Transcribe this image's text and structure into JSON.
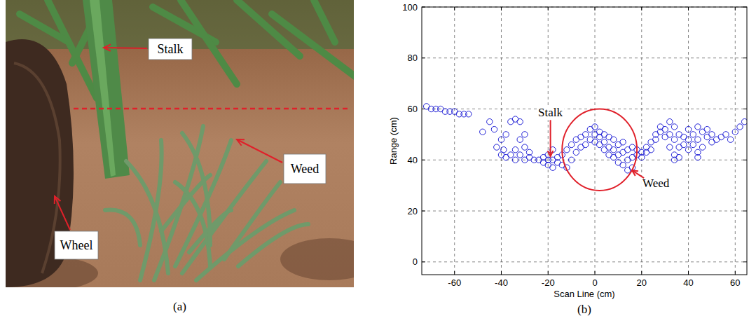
{
  "chart_data": {
    "type": "scatter",
    "x_label": "Scan Line (cm)",
    "y_label": "Range (cm)",
    "caption": "(b)",
    "marker": "circle",
    "color": "#1f1fd6",
    "grid": true,
    "xlim": [
      -74,
      65
    ],
    "xticks": [
      -60,
      -40,
      -20,
      0,
      20,
      40,
      60
    ],
    "ylim": [
      -5,
      100
    ],
    "yticks": [
      0,
      20,
      40,
      60,
      80,
      100
    ],
    "x": [
      -72,
      -70,
      -68,
      -66,
      -64,
      -62,
      -60,
      -58,
      -56,
      -54,
      -48,
      -45,
      -43,
      -42,
      -40,
      -40,
      -39,
      -38,
      -38,
      -36,
      -36,
      -34,
      -34,
      -34,
      -32,
      -32,
      -32,
      -30,
      -30,
      -30,
      -28,
      -28,
      -26,
      -24,
      -22,
      -22,
      -20,
      -20,
      -20,
      -18,
      -18,
      -18,
      -16,
      -16,
      -14,
      -14,
      -12,
      -12,
      -10,
      -10,
      -8,
      -8,
      -6,
      -6,
      -4,
      -4,
      -2,
      -2,
      0,
      0,
      0,
      2,
      2,
      2,
      4,
      4,
      4,
      6,
      6,
      6,
      8,
      8,
      8,
      10,
      10,
      10,
      12,
      12,
      12,
      14,
      14,
      14,
      16,
      16,
      16,
      18,
      18,
      20,
      20,
      22,
      22,
      24,
      24,
      26,
      26,
      28,
      28,
      30,
      30,
      32,
      32,
      32,
      34,
      34,
      34,
      34,
      36,
      36,
      36,
      38,
      38,
      40,
      40,
      40,
      42,
      42,
      44,
      44,
      44,
      44,
      46,
      46,
      48,
      48,
      50,
      50,
      52,
      54,
      56,
      58,
      60,
      62,
      64
    ],
    "y": [
      61,
      60,
      60,
      60,
      59,
      59,
      59,
      58,
      58,
      58,
      51,
      55,
      52,
      45,
      48,
      42,
      44,
      41,
      50,
      42,
      55,
      56,
      44,
      40,
      55,
      48,
      42,
      50,
      45,
      40,
      43,
      41,
      40,
      40,
      39,
      41,
      38,
      42,
      40,
      37,
      40,
      44,
      39,
      41,
      38,
      42,
      37,
      44,
      40,
      46,
      43,
      48,
      45,
      49,
      46,
      50,
      48,
      52,
      50,
      53,
      47,
      51,
      49,
      46,
      50,
      47,
      44,
      49,
      45,
      42,
      48,
      44,
      41,
      46,
      42,
      39,
      47,
      43,
      38,
      44,
      40,
      36,
      45,
      41,
      37,
      42,
      44,
      41,
      43,
      43,
      45,
      44,
      47,
      48,
      50,
      51,
      53,
      52,
      49,
      55,
      50,
      45,
      53,
      48,
      42,
      40,
      50,
      45,
      41,
      49,
      46,
      48,
      52,
      44,
      46,
      50,
      43,
      41,
      48,
      53,
      45,
      51,
      52,
      49,
      50,
      47,
      48,
      49,
      50,
      48,
      51,
      53,
      55
    ],
    "annotations": [
      {
        "text": "Stalk",
        "x": -19,
        "y": 40
      },
      {
        "text": "Weed",
        "x": 15,
        "y": 37
      }
    ],
    "circle": {
      "x": 2,
      "y": 44,
      "radius": 16
    }
  },
  "photo": {
    "caption": "(a)",
    "labels": [
      "Stalk",
      "Weed",
      "Wheel"
    ]
  }
}
